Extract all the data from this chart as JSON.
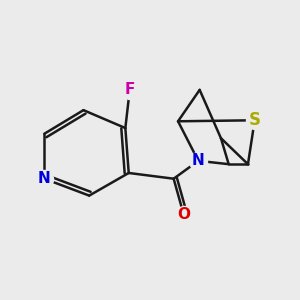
{
  "background_color": "#ebebeb",
  "bond_color": "#1a1a1a",
  "bond_width": 1.8,
  "atoms": {
    "N_pyridine": {
      "label": "N",
      "color": "#0000dd",
      "fontsize": 11
    },
    "F": {
      "label": "F",
      "color": "#cc00aa",
      "fontsize": 11
    },
    "O": {
      "label": "O",
      "color": "#dd0000",
      "fontsize": 11
    },
    "N_bicycle": {
      "label": "N",
      "color": "#0000dd",
      "fontsize": 11
    },
    "S": {
      "label": "S",
      "color": "#aaaa00",
      "fontsize": 12
    }
  },
  "figsize": [
    3.0,
    3.0
  ],
  "dpi": 100
}
